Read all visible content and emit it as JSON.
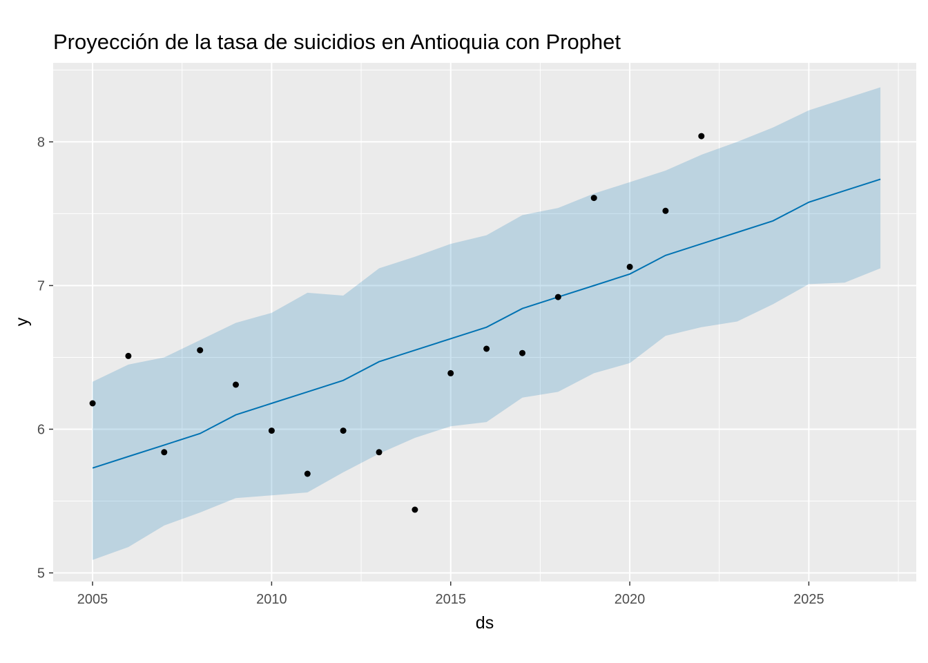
{
  "chart_data": {
    "type": "line",
    "title": "Proyección de la tasa de suicidios en Antioquia con Prophet",
    "xlabel": "ds",
    "ylabel": "y",
    "xlim": [
      2003.9,
      2028.0
    ],
    "ylim": [
      4.94,
      8.55
    ],
    "x_ticks": [
      2005,
      2010,
      2015,
      2020,
      2025
    ],
    "x_tick_labels": [
      "2005",
      "2010",
      "2015",
      "2020",
      "2025"
    ],
    "y_ticks": [
      5,
      6,
      7,
      8
    ],
    "y_tick_labels": [
      "5",
      "6",
      "7",
      "8"
    ],
    "grid": true,
    "panel_background": "#ebebeb",
    "colors": {
      "forecast_line": "#0072b2",
      "interval_fill": "#0072b2",
      "points": "#000000"
    },
    "observed": {
      "x": [
        2005,
        2006,
        2007,
        2008,
        2009,
        2010,
        2011,
        2012,
        2013,
        2014,
        2015,
        2016,
        2017,
        2018,
        2019,
        2020,
        2021,
        2022
      ],
      "y": [
        6.18,
        6.51,
        5.84,
        6.55,
        6.31,
        5.99,
        5.69,
        5.99,
        5.84,
        5.44,
        6.39,
        6.56,
        6.53,
        6.92,
        7.61,
        7.13,
        7.52,
        8.04
      ]
    },
    "forecast": {
      "x": [
        2005,
        2006,
        2007,
        2008,
        2009,
        2010,
        2011,
        2012,
        2013,
        2014,
        2015,
        2016,
        2017,
        2018,
        2019,
        2020,
        2021,
        2022,
        2023,
        2024,
        2025,
        2026,
        2027
      ],
      "yhat": [
        5.73,
        5.81,
        5.89,
        5.97,
        6.1,
        6.18,
        6.26,
        6.34,
        6.47,
        6.55,
        6.63,
        6.71,
        6.84,
        6.92,
        7.0,
        7.08,
        7.21,
        7.29,
        7.37,
        7.45,
        7.58,
        7.66,
        7.74
      ],
      "yhat_lower": [
        5.09,
        5.18,
        5.33,
        5.42,
        5.52,
        5.54,
        5.56,
        5.7,
        5.83,
        5.94,
        6.02,
        6.05,
        6.22,
        6.26,
        6.39,
        6.46,
        6.65,
        6.71,
        6.75,
        6.87,
        7.01,
        7.02,
        7.12
      ],
      "yhat_upper": [
        6.33,
        6.45,
        6.5,
        6.62,
        6.74,
        6.81,
        6.95,
        6.93,
        7.12,
        7.2,
        7.29,
        7.35,
        7.49,
        7.54,
        7.64,
        7.72,
        7.8,
        7.91,
        8.0,
        8.1,
        8.22,
        8.3,
        8.38
      ]
    }
  }
}
